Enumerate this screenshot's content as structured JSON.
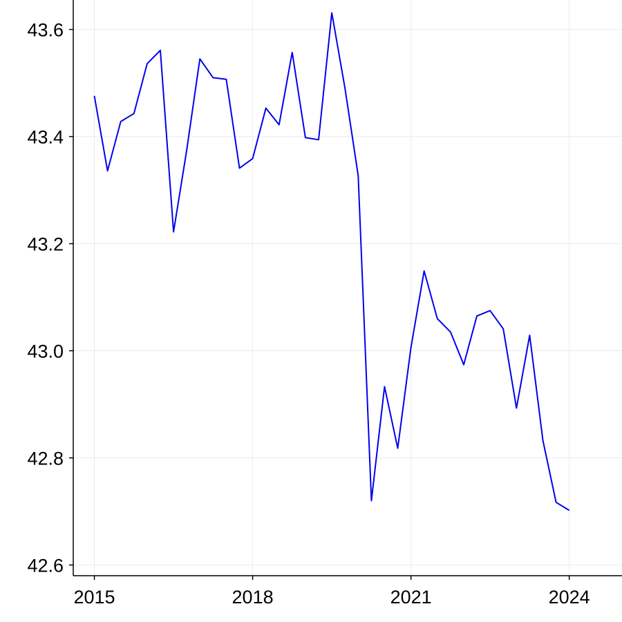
{
  "chart_data": {
    "type": "line",
    "title": "",
    "xlabel": "",
    "ylabel": "",
    "xlim": [
      2014.6,
      2025.0
    ],
    "ylim": [
      42.58,
      43.655
    ],
    "x_ticks": [
      2015,
      2018,
      2021,
      2024
    ],
    "x_tick_labels": [
      "2015",
      "2018",
      "2021",
      "2024"
    ],
    "y_ticks": [
      42.6,
      42.8,
      43.0,
      43.2,
      43.4,
      43.6
    ],
    "y_tick_labels": [
      "42.6",
      "42.8",
      "43.0",
      "43.2",
      "43.4",
      "43.6"
    ],
    "grid": true,
    "legend": "none",
    "colors": {
      "series": "#0000ee",
      "grid": "#ececec",
      "axis": "#000000"
    },
    "series": [
      {
        "x": [
          2015.0,
          2015.25,
          2015.5,
          2015.75,
          2016.0,
          2016.25,
          2016.5,
          2016.75,
          2017.0,
          2017.25,
          2017.5,
          2017.75,
          2018.0,
          2018.25,
          2018.5,
          2018.75,
          2019.0,
          2019.25,
          2019.5,
          2019.75,
          2020.0,
          2020.25,
          2020.5,
          2020.75,
          2021.0,
          2021.25,
          2021.5,
          2021.75,
          2022.0,
          2022.25,
          2022.5,
          2022.75,
          2023.0,
          2023.25,
          2023.5,
          2023.75,
          2024.0
        ],
        "values": [
          43.476,
          43.336,
          43.428,
          43.443,
          43.536,
          43.561,
          43.222,
          43.374,
          43.545,
          43.51,
          43.507,
          43.341,
          43.359,
          43.453,
          43.422,
          43.557,
          43.398,
          43.394,
          43.631,
          43.49,
          43.327,
          42.72,
          42.933,
          42.818,
          43.006,
          43.149,
          43.06,
          43.035,
          42.974,
          43.065,
          43.075,
          43.041,
          42.893,
          43.029,
          42.833,
          42.717,
          42.702
        ]
      }
    ]
  }
}
